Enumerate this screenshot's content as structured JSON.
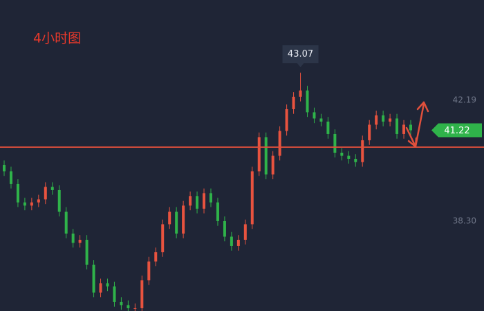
{
  "chart_data": {
    "type": "candlestick",
    "title": "4小时图",
    "up_color": "#e8533f",
    "down_color": "#2fb34a",
    "open": [
      40.1,
      39.9,
      39.5,
      38.9,
      38.8,
      38.9,
      39.0,
      39.4,
      39.3,
      38.6,
      37.9,
      37.6,
      37.7,
      36.9,
      36.0,
      36.3,
      36.2,
      35.7,
      35.6,
      35.5,
      35.5,
      36.4,
      37.0,
      37.3,
      38.2,
      38.6,
      37.9,
      38.8,
      39.1,
      38.7,
      39.2,
      38.9,
      38.3,
      37.8,
      37.5,
      37.7,
      38.2,
      39.9,
      41.0,
      39.8,
      40.4,
      41.2,
      41.9,
      42.3,
      42.5,
      41.8,
      41.6,
      41.5,
      41.1,
      40.5,
      40.4,
      40.3,
      40.2,
      40.9,
      41.4,
      41.7,
      41.5,
      41.6,
      41.1,
      41.4
    ],
    "high": [
      40.25,
      40.05,
      39.65,
      39.05,
      39.05,
      39.15,
      39.55,
      39.55,
      39.45,
      38.75,
      38.05,
      37.85,
      37.85,
      37.05,
      36.45,
      36.45,
      36.35,
      35.85,
      35.75,
      35.65,
      36.55,
      37.15,
      37.45,
      38.35,
      38.75,
      38.75,
      38.95,
      39.25,
      39.25,
      39.35,
      39.35,
      39.05,
      38.45,
      37.95,
      37.85,
      38.35,
      40.05,
      41.15,
      41.15,
      40.55,
      41.35,
      42.05,
      42.45,
      43.07,
      42.65,
      41.95,
      41.75,
      41.65,
      41.25,
      40.65,
      40.55,
      40.45,
      41.05,
      41.55,
      41.85,
      41.85,
      41.75,
      41.75,
      41.55,
      41.55
    ],
    "low": [
      39.75,
      39.35,
      38.75,
      38.65,
      38.65,
      38.75,
      38.85,
      39.15,
      38.45,
      37.75,
      37.45,
      37.45,
      36.75,
      35.85,
      35.85,
      36.05,
      35.55,
      35.45,
      35.35,
      35.35,
      35.35,
      36.25,
      36.85,
      37.15,
      38.05,
      37.75,
      37.75,
      38.65,
      38.55,
      38.55,
      38.75,
      38.15,
      37.65,
      37.35,
      37.35,
      37.55,
      38.05,
      39.75,
      39.65,
      39.65,
      40.25,
      41.05,
      41.75,
      42.15,
      41.65,
      41.45,
      41.35,
      40.95,
      40.35,
      40.25,
      40.15,
      40.05,
      40.05,
      40.75,
      41.25,
      41.35,
      41.35,
      40.95,
      40.95,
      41.07
    ],
    "close": [
      39.9,
      39.5,
      38.9,
      38.8,
      38.9,
      39.0,
      39.4,
      39.3,
      38.6,
      37.9,
      37.6,
      37.7,
      36.9,
      36.0,
      36.3,
      36.2,
      35.7,
      35.6,
      35.5,
      35.5,
      36.4,
      37.0,
      37.3,
      38.2,
      38.6,
      37.9,
      38.8,
      39.1,
      38.7,
      39.2,
      38.9,
      38.3,
      37.8,
      37.5,
      37.7,
      38.2,
      39.9,
      41.0,
      39.8,
      40.4,
      41.2,
      41.9,
      42.3,
      42.5,
      41.8,
      41.6,
      41.5,
      41.1,
      40.5,
      40.4,
      40.3,
      40.2,
      40.9,
      41.4,
      41.7,
      41.5,
      41.6,
      41.1,
      41.4,
      41.22
    ],
    "ylim": [
      35.41,
      45.41
    ],
    "yticks": [
      42.19,
      {
        "value": 38.3,
        "label": "38.30"
      }
    ],
    "high_label": 43.07,
    "last_price": 41.22,
    "last_price_color": "#2fb34a",
    "hline": 40.68,
    "hline_color": "#e0503c"
  }
}
